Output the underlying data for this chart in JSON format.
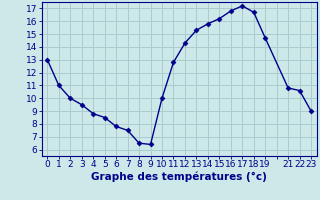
{
  "x": [
    0,
    1,
    2,
    3,
    4,
    5,
    6,
    7,
    8,
    9,
    10,
    11,
    12,
    13,
    14,
    15,
    16,
    17,
    18,
    19,
    21,
    22,
    23
  ],
  "y": [
    13,
    11,
    10,
    9.5,
    8.8,
    8.5,
    7.8,
    7.5,
    6.5,
    6.4,
    10.0,
    12.8,
    14.3,
    15.3,
    15.8,
    16.2,
    16.8,
    17.2,
    16.7,
    14.7,
    10.8,
    10.6,
    9.0
  ],
  "line_color": "#00008B",
  "marker": "D",
  "marker_size": 2.5,
  "bg_color": "#cce8e8",
  "grid_color": "#aacccc",
  "xlabel": "Graphe des températures (°c)",
  "xlim": [
    -0.5,
    23.5
  ],
  "ylim": [
    5.5,
    17.5
  ],
  "yticks": [
    6,
    7,
    8,
    9,
    10,
    11,
    12,
    13,
    14,
    15,
    16,
    17
  ],
  "xtick_labels_all": [
    "0",
    "1",
    "2",
    "3",
    "4",
    "5",
    "6",
    "7",
    "8",
    "9",
    "10",
    "11",
    "12",
    "13",
    "14",
    "15",
    "16",
    "17",
    "18",
    "19",
    "",
    "21",
    "22",
    "23"
  ],
  "tick_fontsize": 6.5,
  "label_fontsize": 7.5
}
